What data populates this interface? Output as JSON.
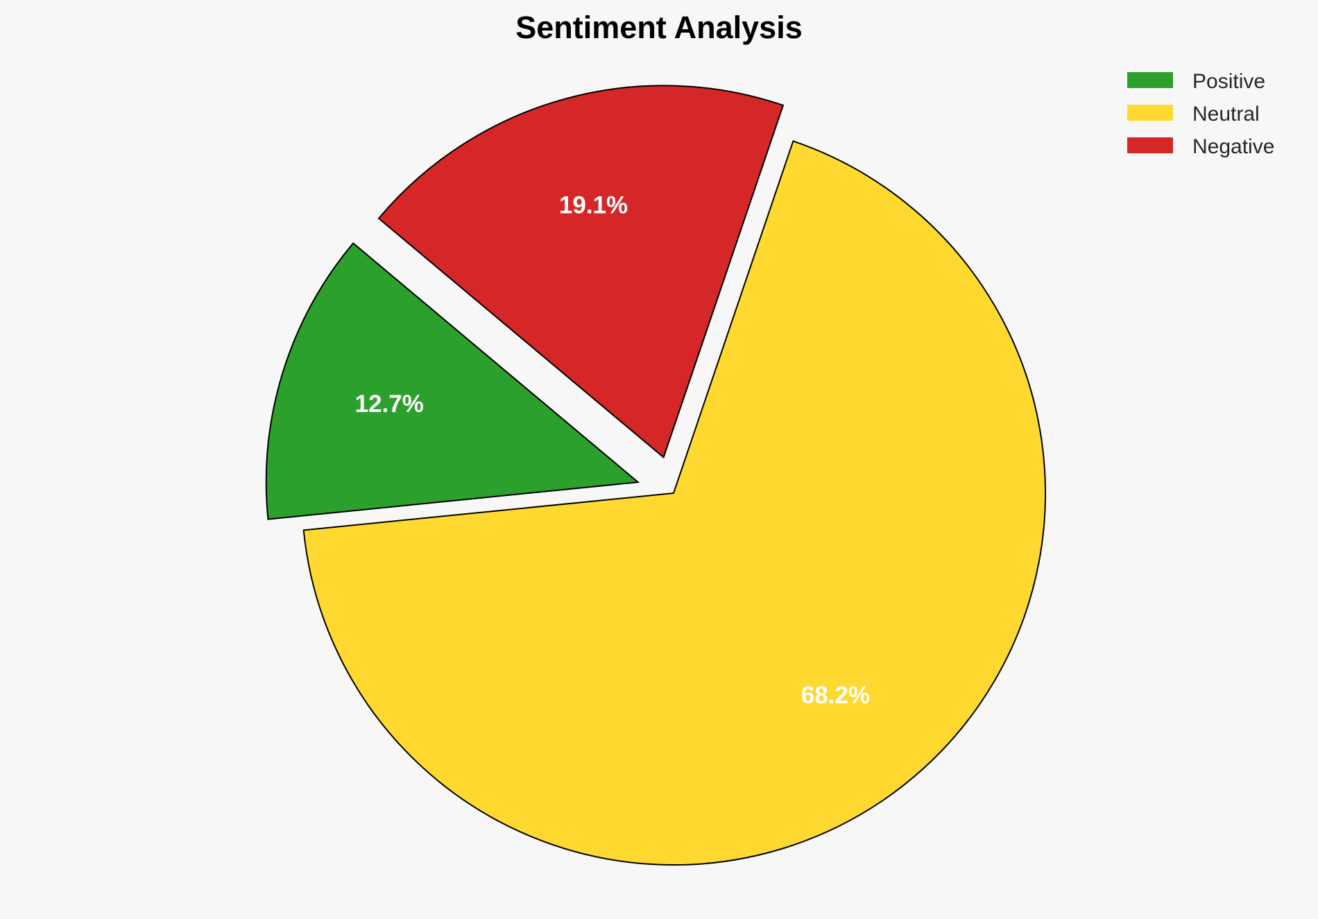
{
  "chart_data": {
    "type": "pie",
    "title": "Sentiment Analysis",
    "categories": [
      "Positive",
      "Neutral",
      "Negative"
    ],
    "values": [
      12.7,
      68.2,
      19.1
    ],
    "labels": [
      "12.7%",
      "68.2%",
      "19.1%"
    ],
    "colors": [
      "#2ca02c",
      "#ffd92f",
      "#d62728"
    ],
    "explode": [
      0.1,
      0,
      0.1
    ],
    "start_angle": 140,
    "direction": "counterclockwise",
    "legend": {
      "placement": "top-right",
      "entries": [
        "Positive",
        "Neutral",
        "Negative"
      ]
    }
  }
}
